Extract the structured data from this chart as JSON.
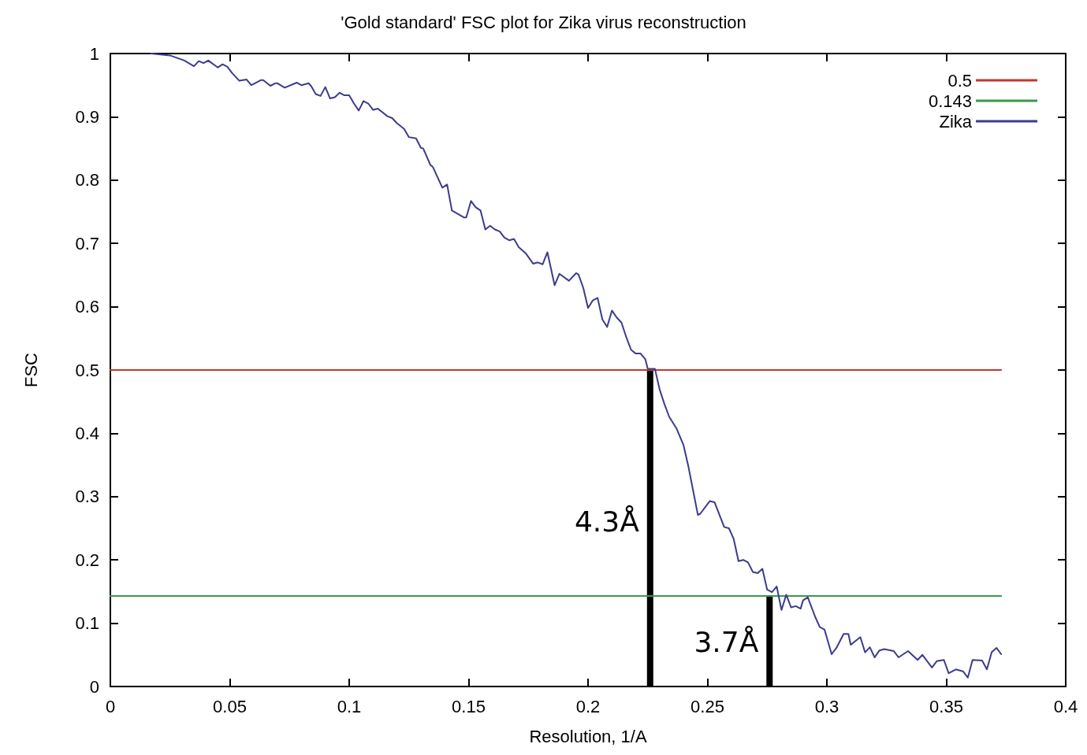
{
  "chart_data": {
    "type": "line",
    "title": "'Gold standard' FSC plot for Zika virus reconstruction",
    "xlabel": "Resolution, 1/A",
    "ylabel": "FSC",
    "xlim": [
      0,
      0.4
    ],
    "xticks": [
      0,
      0.05,
      0.1,
      0.15,
      0.2,
      0.25,
      0.3,
      0.35,
      0.4
    ],
    "ylim": [
      0,
      1
    ],
    "yticks": [
      0,
      0.1,
      0.2,
      0.3,
      0.4,
      0.5,
      0.6,
      0.7,
      0.8,
      0.9,
      1
    ],
    "grid": false,
    "legend": "top right",
    "marker": "none",
    "line_style": "solid",
    "series": [
      {
        "name": "0.5",
        "color": "#c0392b",
        "x": [
          0,
          0.373
        ],
        "values": [
          0.5,
          0.5
        ]
      },
      {
        "name": "0.143",
        "color": "#3a9a4a",
        "x": [
          0,
          0.373
        ],
        "values": [
          0.143,
          0.143
        ]
      },
      {
        "name": "Zika",
        "color": "#3c3c8c",
        "x": [
          0.017,
          0.025,
          0.031,
          0.035,
          0.037,
          0.039,
          0.041,
          0.045,
          0.047,
          0.049,
          0.051,
          0.054,
          0.057,
          0.059,
          0.06,
          0.063,
          0.064,
          0.067,
          0.069,
          0.07,
          0.073,
          0.078,
          0.08,
          0.083,
          0.084,
          0.086,
          0.088,
          0.09,
          0.092,
          0.094,
          0.096,
          0.098,
          0.1,
          0.102,
          0.104,
          0.106,
          0.108,
          0.11,
          0.112,
          0.116,
          0.118,
          0.12,
          0.123,
          0.125,
          0.128,
          0.13,
          0.131,
          0.134,
          0.135,
          0.139,
          0.141,
          0.143,
          0.148,
          0.149,
          0.151,
          0.153,
          0.155,
          0.157,
          0.159,
          0.161,
          0.163,
          0.165,
          0.167,
          0.169,
          0.171,
          0.174,
          0.177,
          0.179,
          0.181,
          0.183,
          0.186,
          0.188,
          0.192,
          0.195,
          0.196,
          0.198,
          0.2,
          0.202,
          0.204,
          0.206,
          0.208,
          0.21,
          0.212,
          0.214,
          0.216,
          0.218,
          0.22,
          0.222,
          0.224,
          0.225,
          0.228,
          0.23,
          0.232,
          0.234,
          0.237,
          0.24,
          0.242,
          0.246,
          0.247,
          0.251,
          0.253,
          0.257,
          0.259,
          0.261,
          0.263,
          0.265,
          0.267,
          0.269,
          0.271,
          0.273,
          0.275,
          0.277,
          0.279,
          0.281,
          0.283,
          0.285,
          0.287,
          0.289,
          0.29,
          0.292,
          0.295,
          0.297,
          0.299,
          0.3,
          0.302,
          0.304,
          0.307,
          0.309,
          0.31,
          0.314,
          0.316,
          0.318,
          0.32,
          0.322,
          0.324,
          0.328,
          0.33,
          0.334,
          0.338,
          0.34,
          0.344,
          0.346,
          0.349,
          0.351,
          0.354,
          0.357,
          0.359,
          0.361,
          0.365,
          0.367,
          0.369,
          0.371,
          0.373
        ],
        "values": [
          1,
          0.997,
          0.989,
          0.98,
          0.988,
          0.985,
          0.989,
          0.978,
          0.983,
          0.979,
          0.969,
          0.957,
          0.959,
          0.95,
          0.952,
          0.958,
          0.958,
          0.949,
          0.953,
          0.953,
          0.946,
          0.954,
          0.95,
          0.953,
          0.949,
          0.936,
          0.933,
          0.947,
          0.929,
          0.931,
          0.938,
          0.934,
          0.934,
          0.921,
          0.91,
          0.925,
          0.921,
          0.911,
          0.913,
          0.901,
          0.898,
          0.89,
          0.881,
          0.868,
          0.866,
          0.851,
          0.85,
          0.824,
          0.821,
          0.788,
          0.793,
          0.752,
          0.741,
          0.741,
          0.767,
          0.757,
          0.752,
          0.722,
          0.728,
          0.722,
          0.719,
          0.709,
          0.705,
          0.707,
          0.694,
          0.684,
          0.668,
          0.67,
          0.667,
          0.686,
          0.634,
          0.652,
          0.641,
          0.653,
          0.651,
          0.63,
          0.598,
          0.61,
          0.614,
          0.58,
          0.568,
          0.594,
          0.583,
          0.575,
          0.552,
          0.532,
          0.526,
          0.526,
          0.517,
          0.502,
          0.502,
          0.469,
          0.446,
          0.426,
          0.408,
          0.381,
          0.348,
          0.271,
          0.273,
          0.293,
          0.291,
          0.252,
          0.25,
          0.233,
          0.198,
          0.2,
          0.196,
          0.181,
          0.179,
          0.186,
          0.153,
          0.149,
          0.158,
          0.121,
          0.145,
          0.125,
          0.127,
          0.123,
          0.136,
          0.141,
          0.111,
          0.094,
          0.09,
          0.077,
          0.051,
          0.061,
          0.083,
          0.083,
          0.066,
          0.078,
          0.054,
          0.062,
          0.046,
          0.057,
          0.059,
          0.056,
          0.046,
          0.056,
          0.042,
          0.05,
          0.03,
          0.04,
          0.042,
          0.021,
          0.027,
          0.024,
          0.014,
          0.042,
          0.041,
          0.027,
          0.054,
          0.061,
          0.051
        ]
      },
      {
        "type": "bar",
        "color": "#000000",
        "x": [
          0.226,
          0.276
        ],
        "values": [
          0.5,
          0.143
        ]
      }
    ],
    "annotations": [
      {
        "text": "4.3Å",
        "x": 0.226,
        "y": 0.26
      },
      {
        "text": "3.7Å",
        "x": 0.276,
        "y": 0.07
      }
    ]
  }
}
